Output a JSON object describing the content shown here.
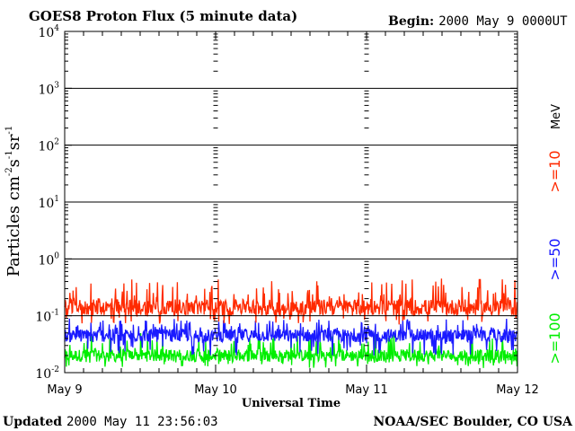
{
  "chart_data": {
    "type": "line",
    "title": "GOES8 Proton Flux (5 minute data)",
    "begin_label": "Begin:",
    "begin_value": "2000 May 9 0000UT",
    "xlabel": "Universal Time",
    "ylabel": "Particles cm",
    "ylabel_sup1": "-2",
    "ylabel_s": "s",
    "ylabel_sup2": "-1",
    "ylabel_sr": "sr",
    "ylabel_sup3": "-1",
    "x_ticks": [
      "May 9",
      "May 10",
      "May 11",
      "May 12"
    ],
    "y_ticks": [
      {
        "base": "10",
        "exp": "4"
      },
      {
        "base": "10",
        "exp": "3"
      },
      {
        "base": "10",
        "exp": "2"
      },
      {
        "base": "10",
        "exp": "1"
      },
      {
        "base": "10",
        "exp": "0"
      },
      {
        "base": "10",
        "exp": "-1"
      },
      {
        "base": "10",
        "exp": "-2"
      }
    ],
    "ylim_log10": [
      -2,
      4
    ],
    "xlim_days": [
      0,
      3
    ],
    "y_scale": "log",
    "energy_unit": "MeV",
    "grid": true,
    "series": [
      {
        "name": ">=10",
        "color": "#ff2a00",
        "typical": 0.14,
        "range": [
          0.07,
          0.45
        ]
      },
      {
        "name": ">=50",
        "color": "#1a1aff",
        "typical": 0.045,
        "range": [
          0.02,
          0.09
        ]
      },
      {
        "name": ">=100",
        "color": "#00ee00",
        "typical": 0.02,
        "range": [
          0.012,
          0.05
        ]
      }
    ]
  },
  "footer": {
    "updated_label": "Updated",
    "updated_value": "2000 May 11 23:56:03",
    "source": "NOAA/SEC Boulder, CO USA"
  }
}
